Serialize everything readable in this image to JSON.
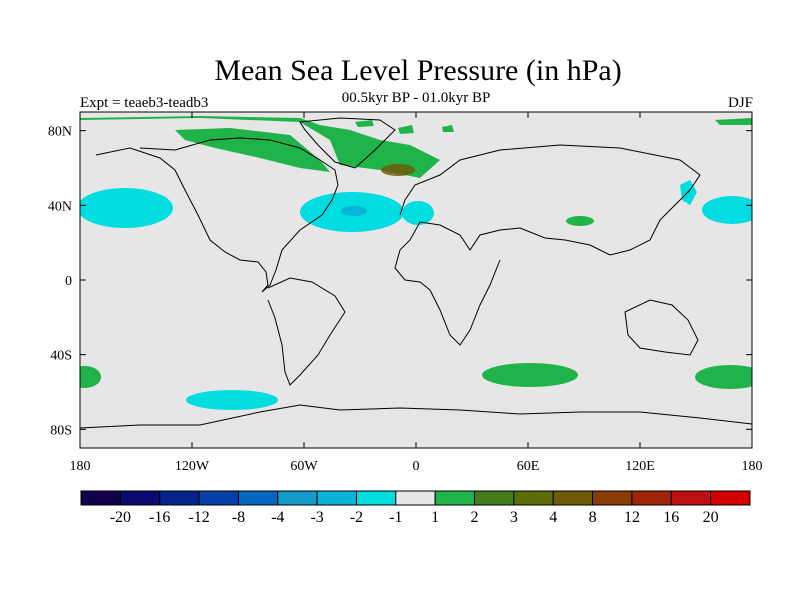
{
  "title": "Mean Sea Level Pressure (in hPa)",
  "left_label": "Expt = teaeb3-teadb3",
  "center_label": "00.5kyr BP - 01.0kyr BP",
  "right_label": "DJF",
  "colors": {
    "ocean_background": "#e6e6e6",
    "coastline": "#000000",
    "colorbar": [
      "#12004a",
      "#0a0b6e",
      "#06238c",
      "#0440a8",
      "#0567bf",
      "#1499c9",
      "#0ab4d8",
      "#00dce0",
      "#e6e6e6",
      "#20b34a",
      "#447e1a",
      "#5a6d0a",
      "#6e5a08",
      "#8a3c06",
      "#a0260a",
      "#bd1010",
      "#d40000"
    ]
  },
  "axes": {
    "lat_ticks": [
      "80N",
      "40N",
      "0",
      "40S",
      "80S"
    ],
    "lon_ticks": [
      "180",
      "120W",
      "60W",
      "0",
      "60E",
      "120E",
      "180"
    ]
  },
  "colorbar_labels": [
    "-20",
    "-16",
    "-12",
    "-8",
    "-4",
    "-3",
    "-2",
    "-1",
    "1",
    "2",
    "3",
    "4",
    "8",
    "12",
    "16",
    "20"
  ],
  "chart_data": {
    "type": "heatmap",
    "title": "Mean Sea Level Pressure (in hPa)",
    "variable": "Mean Sea Level Pressure difference",
    "units": "hPa",
    "experiment": "teaeb3-teadb3",
    "period": "00.5kyr BP - 01.0kyr BP",
    "season": "DJF",
    "lon_range": [
      -180,
      180
    ],
    "lat_range": [
      -90,
      90
    ],
    "contour_levels": [
      -20,
      -16,
      -12,
      -8,
      -4,
      -3,
      -2,
      -1,
      1,
      2,
      3,
      4,
      8,
      12,
      16,
      20
    ],
    "anomaly_regions": [
      {
        "region": "Arctic / Greenland / N. Atlantic high latitudes",
        "range": "1 to 2"
      },
      {
        "region": "Greenland Sea core",
        "range": "3 to 4"
      },
      {
        "region": "Central North Pacific (~40N)",
        "range": "-2 to -1"
      },
      {
        "region": "Subtropical North Atlantic (~35N)",
        "range": "-2 to -1"
      },
      {
        "region": "Subtropical North Atlantic core",
        "range": "-3 to -2"
      },
      {
        "region": "Northwest Pacific off Japan",
        "range": "-2 to -1"
      },
      {
        "region": "Central Asia (~30N, 80E)",
        "range": "1 to 2"
      },
      {
        "region": "Southern Indian Ocean (~50S)",
        "range": "1 to 2"
      },
      {
        "region": "Southwest Pacific (~50S, 170E)",
        "range": "1 to 2"
      },
      {
        "region": "Southeast Pacific (~60S, 100W)",
        "range": "-2 to -1"
      }
    ]
  }
}
